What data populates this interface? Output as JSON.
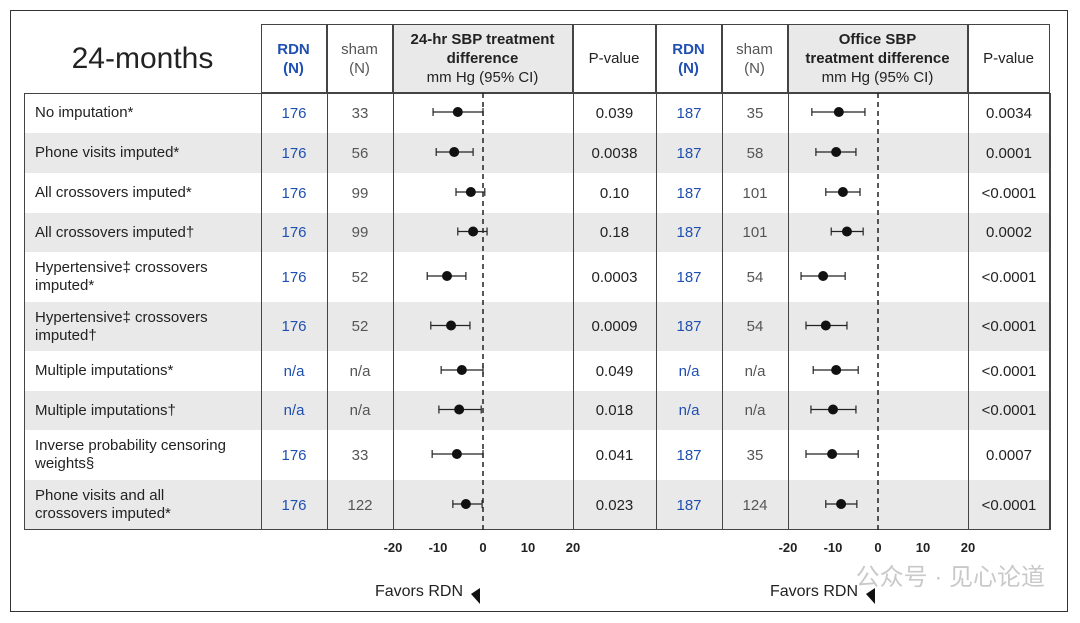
{
  "title": "24-months",
  "headers": [
    [
      "RDN",
      "(N)"
    ],
    [
      "sham",
      "(N)"
    ],
    [
      "24-hr SBP treatment",
      "difference",
      "mm Hg (95% CI)"
    ],
    [
      "P-value"
    ],
    [
      "RDN",
      "(N)"
    ],
    [
      "sham",
      "(N)"
    ],
    [
      "Office SBP",
      "treatment difference",
      "mm Hg (95% CI)"
    ],
    [
      "P-value"
    ]
  ],
  "rows": [
    {
      "label": [
        "No imputation*"
      ],
      "rdn_24": 176,
      "sham_24": 33,
      "p_24": "0.039",
      "rdn_office": 187,
      "sham_office": 35,
      "p_office": "0.0034"
    },
    {
      "label": [
        "Phone visits imputed*"
      ],
      "rdn_24": 176,
      "sham_24": 56,
      "p_24": "0.0038",
      "rdn_office": 187,
      "sham_office": 58,
      "p_office": "0.0001"
    },
    {
      "label": [
        "All crossovers imputed*"
      ],
      "rdn_24": 176,
      "sham_24": 99,
      "p_24": "0.10",
      "rdn_office": 187,
      "sham_office": 101,
      "p_office": "<0.0001"
    },
    {
      "label": [
        "All crossovers imputed†"
      ],
      "rdn_24": 176,
      "sham_24": 99,
      "p_24": "0.18",
      "rdn_office": 187,
      "sham_office": 101,
      "p_office": "0.0002"
    },
    {
      "label": [
        "Hypertensive‡ crossovers",
        "imputed*"
      ],
      "rdn_24": 176,
      "sham_24": 52,
      "p_24": "0.0003",
      "rdn_office": 187,
      "sham_office": 54,
      "p_office": "<0.0001"
    },
    {
      "label": [
        "Hypertensive‡ crossovers",
        "imputed†"
      ],
      "rdn_24": 176,
      "sham_24": 52,
      "p_24": "0.0009",
      "rdn_office": 187,
      "sham_office": 54,
      "p_office": "<0.0001"
    },
    {
      "label": [
        "Multiple imputations*"
      ],
      "rdn_24": "n/a",
      "sham_24": "n/a",
      "p_24": "0.049",
      "rdn_office": "n/a",
      "sham_office": "n/a",
      "p_office": "<0.0001"
    },
    {
      "label": [
        "Multiple imputations†"
      ],
      "rdn_24": "n/a",
      "sham_24": "n/a",
      "p_24": "0.018",
      "rdn_office": "n/a",
      "sham_office": "n/a",
      "p_office": "<0.0001"
    },
    {
      "label": [
        "Inverse probability censoring",
        "weights§"
      ],
      "rdn_24": 176,
      "sham_24": 33,
      "p_24": "0.041",
      "rdn_office": 187,
      "sham_office": 35,
      "p_office": "0.0007"
    },
    {
      "label": [
        "Phone visits and all",
        "crossovers imputed*"
      ],
      "rdn_24": 176,
      "sham_24": 122,
      "p_24": "0.023",
      "rdn_office": 187,
      "sham_office": 124,
      "p_office": "<0.0001"
    }
  ],
  "chart_data": [
    {
      "type": "forest",
      "xlim": [
        -20,
        20
      ],
      "xticks": [
        -20,
        -10,
        0,
        10,
        20
      ],
      "favors": "Favors RDN",
      "estimates": [
        -5.6,
        -6.4,
        -2.7,
        -2.2,
        -8,
        -7.1,
        -4.7,
        -5.3,
        -5.8,
        -3.8
      ],
      "ci_low": [
        -11.1,
        -10.4,
        -6,
        -5.6,
        -12.4,
        -11.6,
        -9.3,
        -9.8,
        -11.3,
        -6.7
      ],
      "ci_high": [
        0,
        -2.2,
        0.4,
        0.9,
        -3.8,
        -2.9,
        0,
        -0.4,
        0,
        -0.2
      ]
    },
    {
      "type": "forest",
      "xlim": [
        -20,
        20
      ],
      "xticks": [
        -20,
        -10,
        0,
        10,
        20
      ],
      "favors": "Favors RDN",
      "estimates": [
        -8.7,
        -9.3,
        -7.8,
        -6.9,
        -12.2,
        -11.6,
        -9.3,
        -10,
        -10.2,
        -8.2
      ],
      "ci_low": [
        -14.7,
        -13.8,
        -11.6,
        -10.4,
        -17.1,
        -16,
        -14.4,
        -14.9,
        -16,
        -11.6
      ],
      "ci_high": [
        -2.9,
        -4.9,
        -4,
        -3.3,
        -7.3,
        -6.9,
        -4.4,
        -4.9,
        -4.4,
        -4.7
      ]
    }
  ],
  "watermark": "公众号 · 见心论道"
}
